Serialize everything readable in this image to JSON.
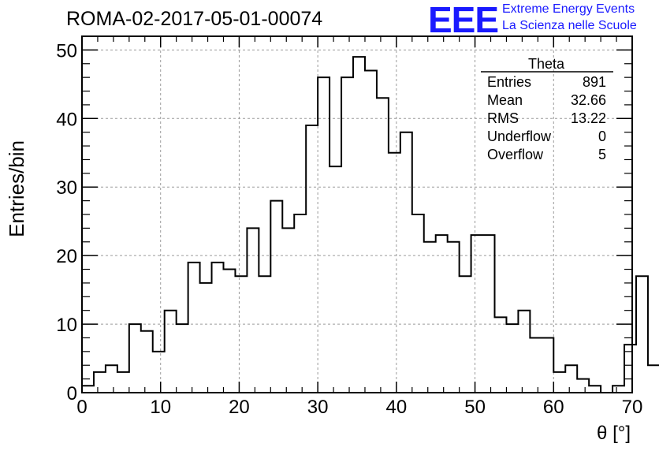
{
  "header": {
    "title": "ROMA-02-2017-05-01-00074",
    "logo_text": "EEE",
    "logo_line1": "Extreme Energy Events",
    "logo_line2": "La Scienza nelle Scuole"
  },
  "colors": {
    "logo": "#1a1aff",
    "grid": "#9a9a9a",
    "line": "#000000"
  },
  "stats": {
    "title": "Theta",
    "rows": [
      {
        "label": "Entries",
        "value": "891"
      },
      {
        "label": "Mean",
        "value": "32.66"
      },
      {
        "label": "RMS",
        "value": "13.22"
      },
      {
        "label": "Underflow",
        "value": "0"
      },
      {
        "label": "Overflow",
        "value": "5"
      }
    ]
  },
  "chart_data": {
    "type": "bar",
    "histogram": true,
    "title": "ROMA-02-2017-05-01-00074",
    "xlabel": "θ [°]",
    "ylabel": "Entries/bin",
    "xlim": [
      0,
      70
    ],
    "ylim": [
      0,
      52
    ],
    "bin_width": 1.5,
    "x_ticks": [
      0,
      10,
      20,
      30,
      40,
      50,
      60,
      70
    ],
    "y_ticks": [
      0,
      10,
      20,
      30,
      40,
      50
    ],
    "grid": true,
    "values": [
      1,
      3,
      4,
      3,
      10,
      9,
      6,
      12,
      10,
      19,
      16,
      19,
      18,
      17,
      24,
      17,
      28,
      24,
      26,
      39,
      46,
      33,
      46,
      49,
      47,
      43,
      35,
      38,
      26,
      22,
      23,
      22,
      17,
      23,
      23,
      11,
      10,
      12,
      8,
      8,
      3,
      4,
      2,
      1,
      0,
      1,
      7,
      17,
      4
    ]
  }
}
